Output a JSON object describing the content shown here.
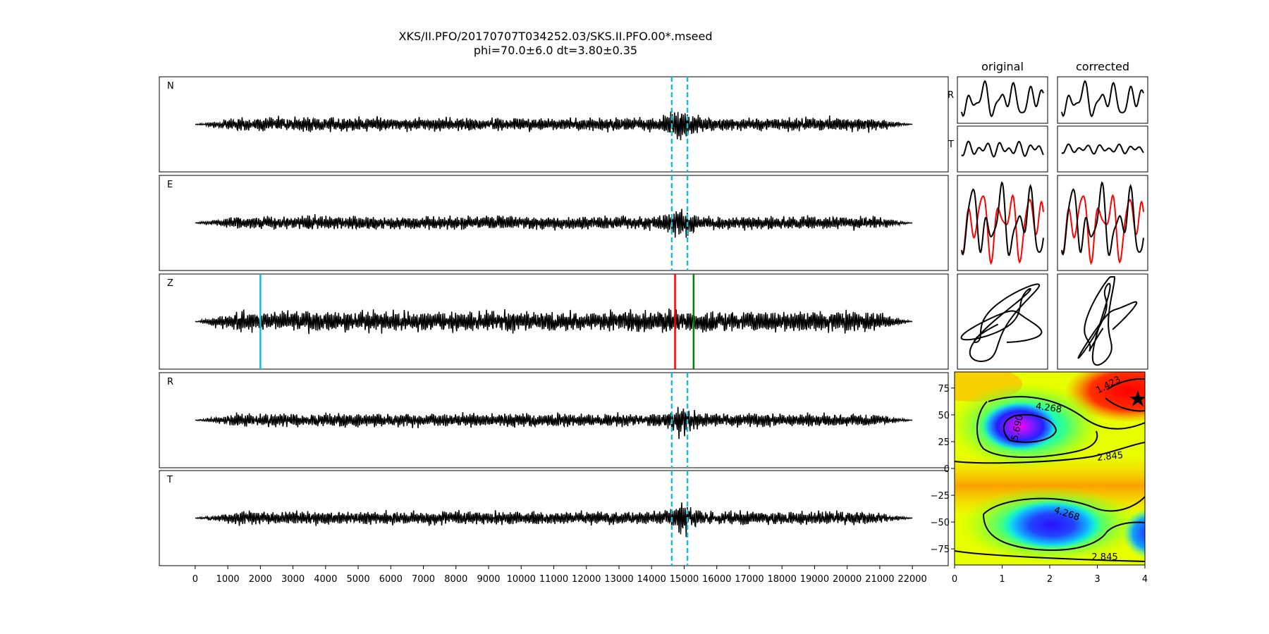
{
  "title_line1": "XKS/II.PFO/20170707T034252.03/SKS.II.PFO.00*.mseed",
  "title_line2": "phi=70.0±6.0 dt=3.80±0.35",
  "chart_data": [
    {
      "type": "line",
      "name": "seismogram-panels",
      "channels": [
        "N",
        "E",
        "Z",
        "R",
        "T"
      ],
      "x_ticks": [
        0,
        1000,
        2000,
        3000,
        4000,
        5000,
        6000,
        7000,
        8000,
        9000,
        10000,
        11000,
        12000,
        13000,
        14000,
        15000,
        16000,
        17000,
        18000,
        19000,
        20000,
        21000,
        22000
      ],
      "xlim": [
        -1100,
        23100
      ],
      "trace_range": [
        0,
        22000
      ],
      "window_lines": [
        14620,
        15100
      ],
      "z_markers": [
        {
          "x": 2000,
          "color": "#17becf"
        },
        {
          "x": 14720,
          "color": "#ff0000"
        },
        {
          "x": 15290,
          "color": "#008000"
        }
      ],
      "window_line_color": "#17becf"
    },
    {
      "type": "line",
      "name": "particle-motion-panels",
      "column_titles": [
        "original",
        "corrected"
      ],
      "row_labels": [
        "R",
        "T"
      ],
      "trace_colors": [
        "#000000",
        "#ff0000"
      ]
    },
    {
      "type": "heatmap",
      "name": "error-surface",
      "x_ticks": [
        0,
        1,
        2,
        3,
        4
      ],
      "y_ticks": [
        75,
        50,
        25,
        0,
        -25,
        -50,
        -75
      ],
      "xlim": [
        0,
        4
      ],
      "ylim": [
        -90,
        90
      ],
      "contour_labels": [
        "1.423",
        "4.268",
        "5.690",
        "2.845",
        "4.268",
        "2.845"
      ],
      "best_fit": {
        "dt": 3.8,
        "phi": 70
      }
    }
  ]
}
